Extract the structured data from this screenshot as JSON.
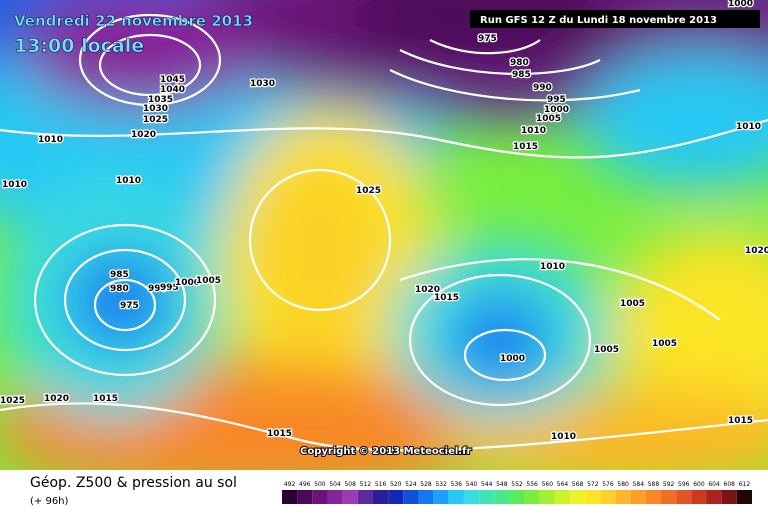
{
  "header": {
    "title": "Vendredi 22 novembre 2013",
    "time": "13:00 locale",
    "run": "Run GFS 12 Z du Lundi 18 novembre 2013"
  },
  "copyright": "Copyright © 2013 Meteociel.fr",
  "footer": {
    "title": "Géop. Z500 & pression au sol",
    "lead": "(+ 96h)"
  },
  "scale": {
    "values": [
      492,
      496,
      500,
      504,
      508,
      512,
      516,
      520,
      524,
      528,
      532,
      536,
      540,
      544,
      548,
      552,
      556,
      560,
      564,
      568,
      572,
      576,
      580,
      584,
      588,
      592,
      596,
      600,
      604,
      608,
      612
    ],
    "colors": [
      "#2a0030",
      "#4a0a55",
      "#6a1478",
      "#86249a",
      "#9a3cb0",
      "#5a2a9e",
      "#2a1e9a",
      "#1428b4",
      "#1050d8",
      "#1678f0",
      "#1ea0f8",
      "#28c8f4",
      "#3adce0",
      "#40e4b4",
      "#48e88a",
      "#58ec5a",
      "#7aee3e",
      "#a4f030",
      "#ccf22a",
      "#eef228",
      "#fce428",
      "#fcd028",
      "#fcb828",
      "#fca028",
      "#f88828",
      "#f06e28",
      "#e25424",
      "#cc3a20",
      "#aa241c",
      "#781414",
      "#200808"
    ]
  },
  "isobar_labels": [
    1045,
    1040,
    1035,
    1030,
    1025,
    1020,
    1030,
    1010,
    1010,
    1010,
    975,
    980,
    985,
    990,
    995,
    1000,
    1005,
    1010,
    1015,
    1025,
    1010,
    1000,
    985,
    980,
    975,
    990,
    995,
    1000,
    1005,
    1010,
    1020,
    1015,
    1005,
    1000,
    1005,
    1005,
    1025,
    1020,
    1015,
    1015,
    1010,
    1015,
    1020
  ]
}
